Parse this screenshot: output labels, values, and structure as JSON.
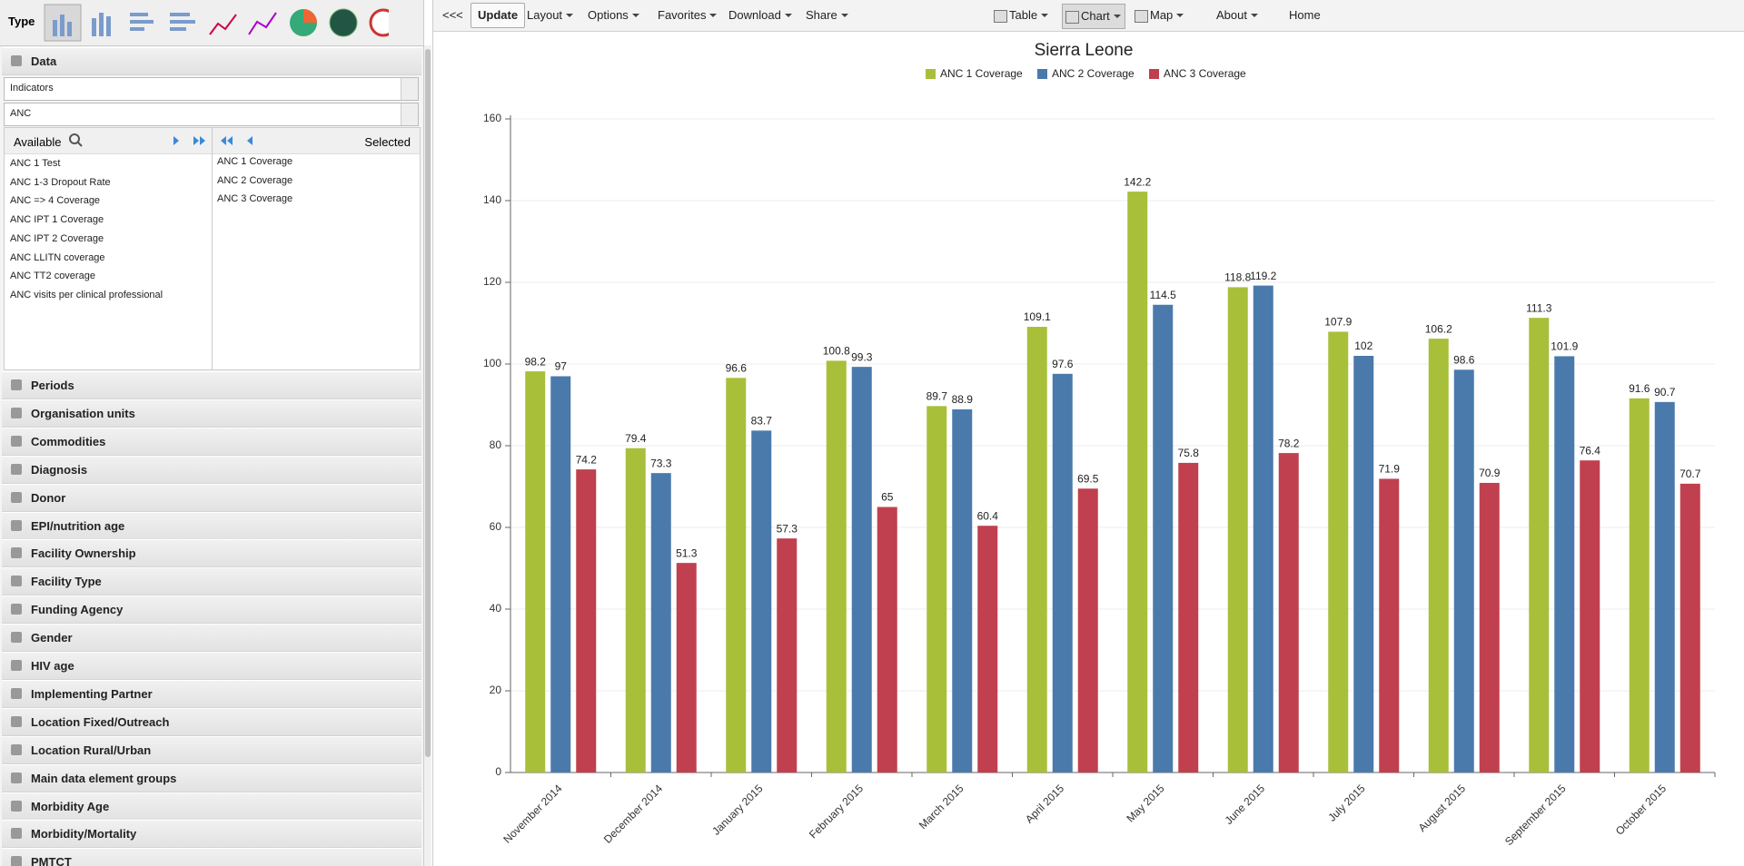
{
  "toolbar": {
    "collapse": "<<<",
    "update": "Update",
    "menus": [
      "Layout",
      "Options",
      "Favorites",
      "Download",
      "Share"
    ],
    "right": [
      "Table",
      "Chart",
      "Map",
      "About",
      "Home"
    ]
  },
  "sidebar": {
    "type_label": "Type",
    "data_title": "Data",
    "selects": [
      "Indicators",
      "ANC"
    ],
    "available_label": "Available",
    "selected_label": "Selected",
    "available": [
      "ANC 1 Test",
      "ANC 1-3 Dropout Rate",
      "ANC => 4 Coverage",
      "ANC IPT 1 Coverage",
      "ANC IPT 2 Coverage",
      "ANC LLITN coverage",
      "ANC TT2 coverage",
      "ANC visits per clinical professional"
    ],
    "selected": [
      "ANC 1 Coverage",
      "ANC 2 Coverage",
      "ANC 3 Coverage"
    ],
    "sections": [
      "Periods",
      "Organisation units",
      "Commodities",
      "Diagnosis",
      "Donor",
      "EPI/nutrition age",
      "Facility Ownership",
      "Facility Type",
      "Funding Agency",
      "Gender",
      "HIV age",
      "Implementing Partner",
      "Location Fixed/Outreach",
      "Location Rural/Urban",
      "Main data element groups",
      "Morbidity Age",
      "Morbidity/Mortality",
      "PMTCT"
    ]
  },
  "chart_data": {
    "type": "bar",
    "title": "Sierra Leone",
    "categories": [
      "November 2014",
      "December 2014",
      "January 2015",
      "February 2015",
      "March 2015",
      "April 2015",
      "May 2015",
      "June 2015",
      "July 2015",
      "August 2015",
      "September 2015",
      "October 2015"
    ],
    "series": [
      {
        "name": "ANC 1 Coverage",
        "color": "#a8bf3a",
        "values": [
          98.2,
          79.4,
          96.6,
          100.8,
          89.7,
          109.1,
          142.2,
          118.8,
          107.9,
          106.2,
          111.3,
          91.6
        ]
      },
      {
        "name": "ANC 2 Coverage",
        "color": "#4a7aab",
        "values": [
          97,
          73.3,
          83.7,
          99.3,
          88.9,
          97.6,
          114.5,
          119.2,
          102,
          98.6,
          101.9,
          90.7
        ]
      },
      {
        "name": "ANC 3 Coverage",
        "color": "#c0404f",
        "values": [
          74.2,
          51.3,
          57.3,
          65,
          60.4,
          69.5,
          75.8,
          78.2,
          71.9,
          70.9,
          76.4,
          70.7
        ]
      }
    ],
    "ylim": [
      0,
      160
    ],
    "yticks": [
      0,
      20,
      40,
      60,
      80,
      100,
      120,
      140,
      160
    ],
    "grid": true,
    "legend": "top"
  }
}
